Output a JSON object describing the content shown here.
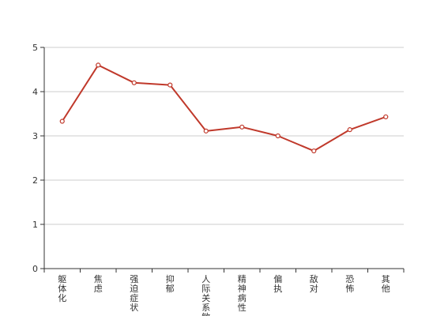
{
  "chart_data": {
    "type": "line",
    "title": "",
    "xlabel": "",
    "ylabel": "",
    "categories": [
      "躯体化",
      "焦虑",
      "强迫症状",
      "抑郁",
      "人际关系敏感",
      "精神病性",
      "偏执",
      "敌对",
      "恐怖",
      "其他"
    ],
    "series": [
      {
        "values": [
          3.33,
          4.6,
          4.2,
          4.15,
          3.11,
          3.2,
          3.0,
          2.66,
          3.14,
          3.43
        ]
      }
    ],
    "ylim": [
      0,
      5
    ],
    "yticks": [
      "0",
      "1",
      "2",
      "3",
      "4",
      "5"
    ],
    "grid": true,
    "colors": {
      "line": "#c0392b",
      "marker_fill": "#ffffff",
      "grid": "#cccccc",
      "axis": "#333333"
    }
  }
}
